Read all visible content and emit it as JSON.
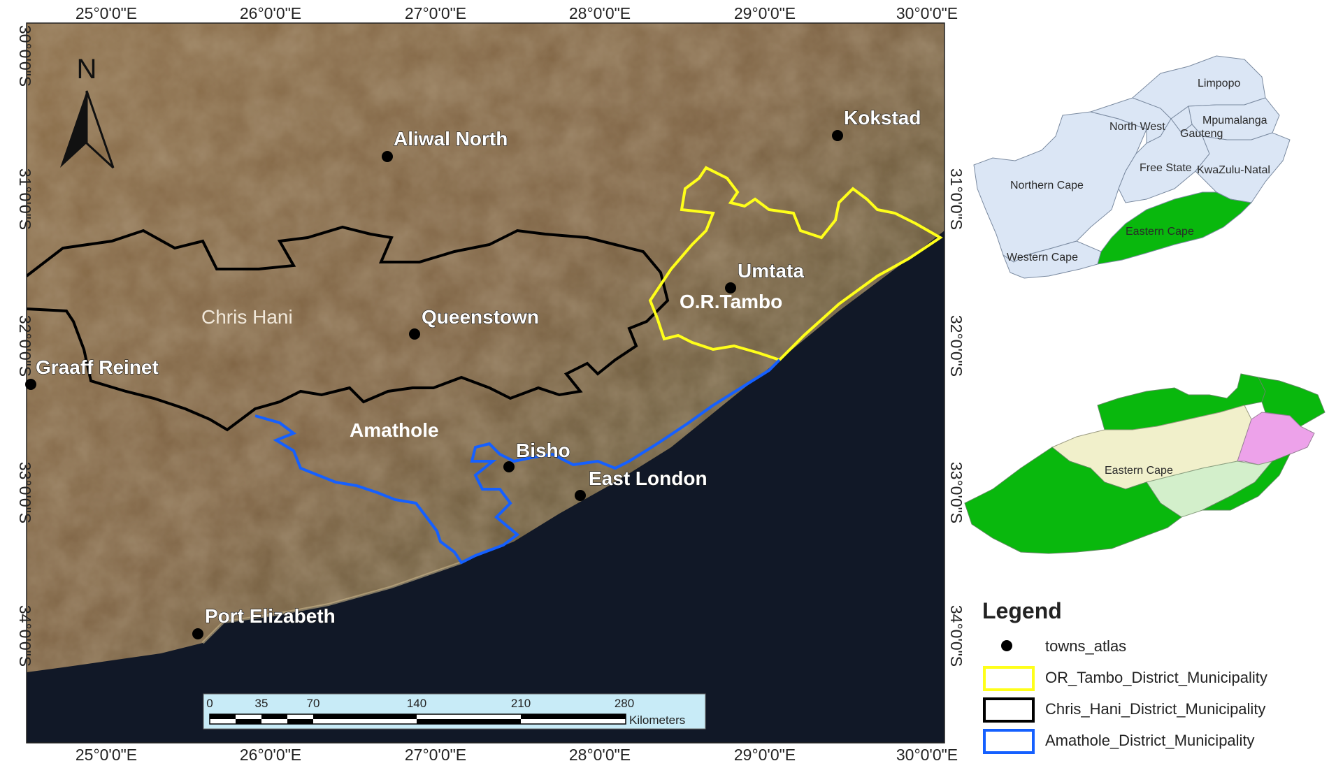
{
  "map": {
    "colors": {
      "or_tambo_boundary": "#ffff1a",
      "chris_hani_boundary": "#000000",
      "amathole_boundary": "#1560ff",
      "ocean": "#111827",
      "land": "#7e6648",
      "inset_province": "#dbe6f5",
      "inset_eastern_cape": "#09b80d",
      "district_or_tambo_inset": "#eda2ea",
      "district_chris_hani_inset": "#f1f0cb",
      "district_amathole_inset": "#d3efcb",
      "scalebar_background": "#c8ebf7"
    },
    "longitude_ticks": [
      "25°0'0\"E",
      "26°0'0\"E",
      "27°0'0\"E",
      "28°0'0\"E",
      "29°0'0\"E",
      "30°0'0\"E"
    ],
    "latitude_ticks": [
      "30°0'0\"S",
      "31°0'0\"S",
      "32°0'0\"S",
      "33°0'0\"S",
      "34°0'0\"S"
    ],
    "north_arrow": "N",
    "towns": [
      "Aliwal North",
      "Kokstad",
      "Umtata",
      "Queenstown",
      "Graaff Reinet",
      "Bisho",
      "East London",
      "Port Elizabeth"
    ],
    "district_labels": [
      "Chris Hani",
      "O.R.Tambo",
      "Amathole"
    ],
    "scale_bar": {
      "ticks": [
        "0",
        "35",
        "70",
        "140",
        "210",
        "280"
      ],
      "unit": "Kilometers"
    }
  },
  "inset_provinces": {
    "provinces": [
      "Limpopo",
      "North West",
      "Mpumalanga",
      "Gauteng",
      "Free State",
      "KwaZulu-Natal",
      "Northern Cape",
      "Eastern Cape",
      "Western Cape"
    ]
  },
  "inset_districts": {
    "label": "Eastern Cape"
  },
  "legend": {
    "title": "Legend",
    "items": [
      {
        "symbol": "point",
        "label": "towns_atlas",
        "color": "#000000"
      },
      {
        "symbol": "box",
        "label": "OR_Tambo_District_Municipality",
        "color": "#ffff1a"
      },
      {
        "symbol": "box",
        "label": "Chris_Hani_District_Municipality",
        "color": "#000000"
      },
      {
        "symbol": "box",
        "label": "Amathole_District_Municipality",
        "color": "#1560ff"
      }
    ]
  }
}
